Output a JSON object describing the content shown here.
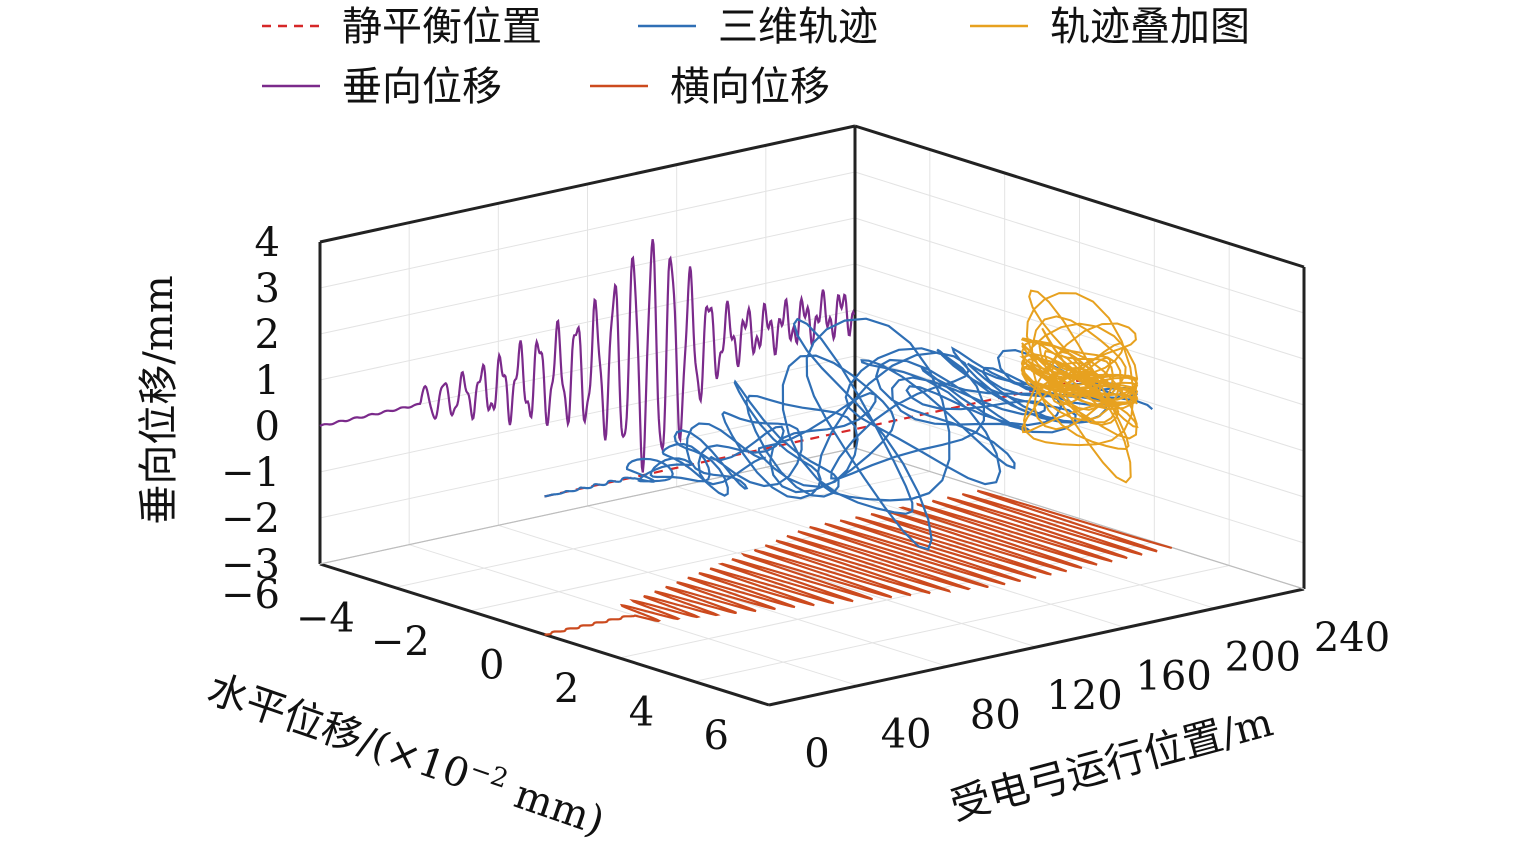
{
  "chart_data": {
    "type": "line3d",
    "legend": [
      {
        "label": "静平衡位置",
        "color": "#d62728",
        "dash": true,
        "key": "equilibrium"
      },
      {
        "label": "三维轨迹",
        "color": "#2f6fb5",
        "key": "traj3d"
      },
      {
        "label": "轨迹叠加图",
        "color": "#e7a11f",
        "key": "overlay"
      },
      {
        "label": "垂向位移",
        "color": "#7b2a8b",
        "key": "vertical"
      },
      {
        "label": "横向位移",
        "color": "#cc4a1e",
        "key": "lateral"
      }
    ],
    "axes": {
      "vertical": {
        "label": "垂向位移/mm",
        "ticks": [
          "4",
          "3",
          "2",
          "1",
          "0",
          "−1",
          "−2",
          "−3"
        ],
        "range": [
          -3,
          4
        ]
      },
      "horizontal": {
        "label": "水平位移/(×10",
        "exp": "−2",
        "unit": " mm)",
        "ticks": [
          "−6",
          "−4",
          "−2",
          "0",
          "2",
          "4",
          "6"
        ],
        "range": [
          -6,
          6
        ]
      },
      "position": {
        "label": "受电弓运行位置/m",
        "ticks": [
          "0",
          "40",
          "80",
          "120",
          "160",
          "200",
          "240"
        ],
        "range": [
          0,
          240
        ]
      }
    },
    "grid": true,
    "legend_position": "top"
  }
}
